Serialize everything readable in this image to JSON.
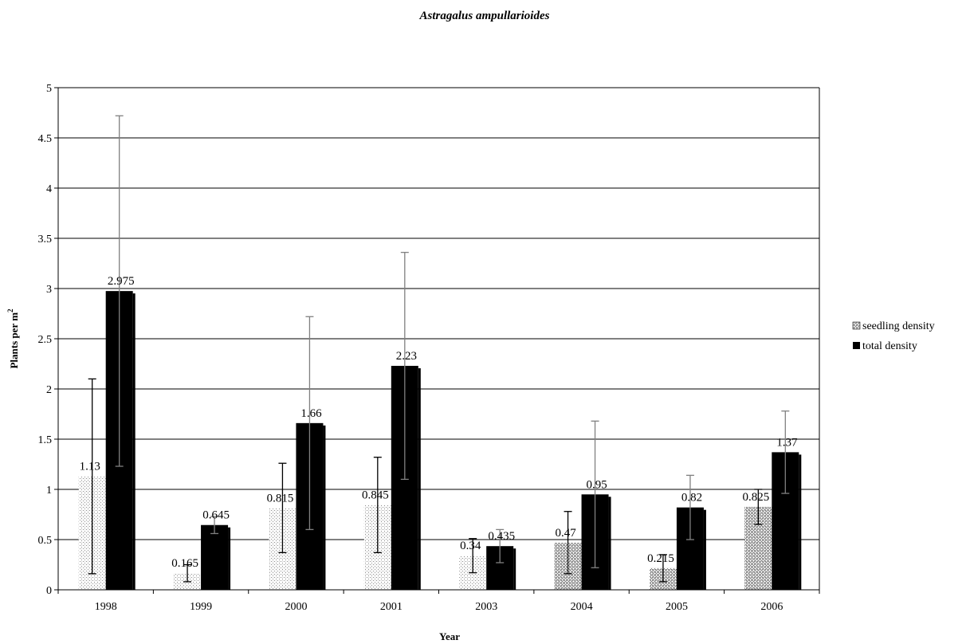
{
  "chart_data": {
    "type": "bar",
    "title": "Astragalus ampullarioides",
    "xlabel": "Year",
    "ylabel": "Plants per m",
    "ylabel_superscript": "2",
    "ylim": [
      0,
      5
    ],
    "yticks": [
      "0",
      "0.5",
      "1",
      "1.5",
      "2",
      "2.5",
      "3",
      "3.5",
      "4",
      "4.5",
      "5"
    ],
    "grid": true,
    "legend_position": "right",
    "categories": [
      "1998",
      "1999",
      "2000",
      "2001",
      "2003",
      "2004",
      "2005",
      "2006"
    ],
    "series": [
      {
        "name": "seedling density",
        "values": [
          1.13,
          0.165,
          0.815,
          0.845,
          0.34,
          0.47,
          0.215,
          0.825
        ],
        "labels": [
          "1.13",
          "0.165",
          "0.815",
          "0.845",
          "0.34",
          "0.47",
          "0.215",
          "0.825"
        ],
        "err_low": [
          0.16,
          0.08,
          0.37,
          0.37,
          0.17,
          0.16,
          0.08,
          0.65
        ],
        "err_high": [
          2.1,
          0.25,
          1.26,
          1.32,
          0.51,
          0.78,
          0.35,
          1.0
        ],
        "color": "#c8c8c8",
        "pattern": "dots-light"
      },
      {
        "name": "total density",
        "values": [
          2.975,
          0.645,
          1.66,
          2.23,
          0.435,
          0.95,
          0.82,
          1.37
        ],
        "labels": [
          "2.975",
          "0.645",
          "1.66",
          "2.23",
          "0.435",
          "0.95",
          "0.82",
          "1.37"
        ],
        "err_low": [
          1.23,
          0.56,
          0.6,
          1.1,
          0.27,
          0.22,
          0.5,
          0.96
        ],
        "err_high": [
          4.72,
          0.73,
          2.72,
          3.36,
          0.6,
          1.68,
          1.14,
          1.78
        ],
        "color": "#000000",
        "pattern": "solid"
      }
    ],
    "colors": {
      "seedling_pattern_dark_years": [
        "2004",
        "2005",
        "2006"
      ],
      "error_bar_seedling": "#000000",
      "error_bar_total": "#808080",
      "gridline": "#000000"
    }
  }
}
